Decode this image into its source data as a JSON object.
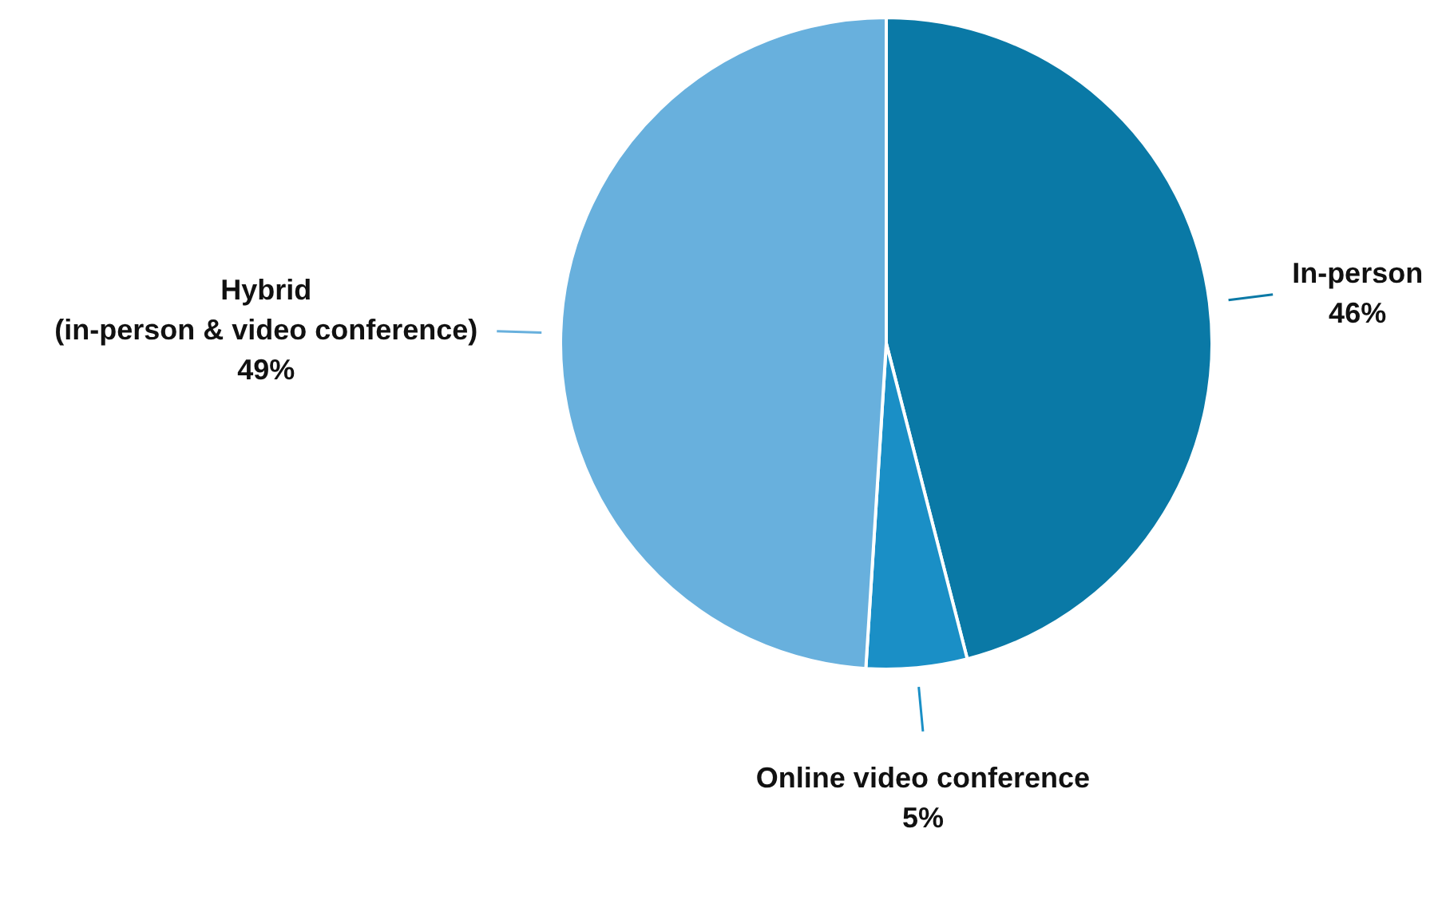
{
  "chart_data": {
    "type": "pie",
    "categories": [
      "In-person",
      "Online video conference",
      "Hybrid\n(in-person & video conference)"
    ],
    "values": [
      46,
      5,
      49
    ],
    "colors": [
      "#0a79a6",
      "#1a8fc6",
      "#68b0dd"
    ],
    "value_labels": [
      "46%",
      "5%",
      "49%"
    ],
    "legend": false
  }
}
